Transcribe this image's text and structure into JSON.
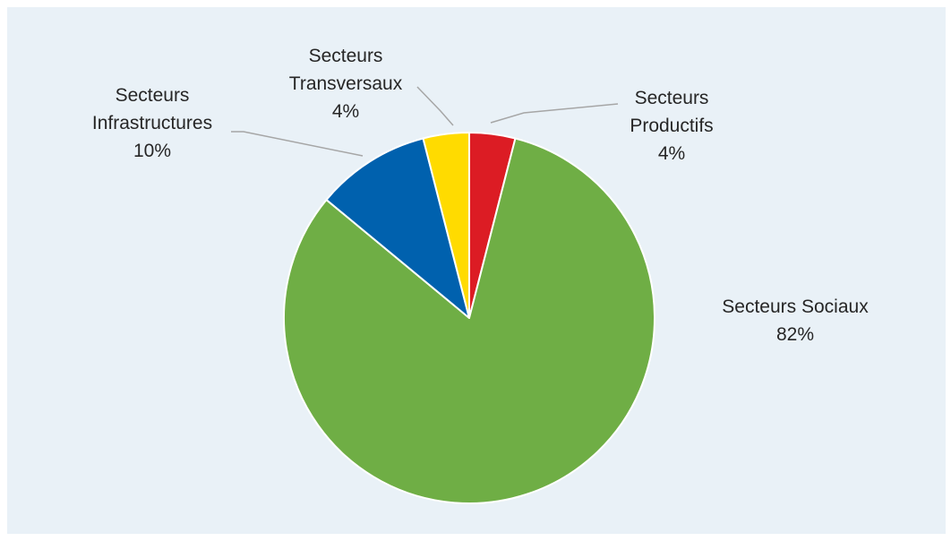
{
  "chart_data": {
    "type": "pie",
    "title": "",
    "start_angle_deg": 0,
    "direction": "clockwise",
    "slices": [
      {
        "label_lines": [
          "Secteurs",
          "Productifs"
        ],
        "value": 4,
        "value_label": "4%",
        "color": "#dc1c24"
      },
      {
        "label_lines": [
          "Secteurs Sociaux"
        ],
        "value": 82,
        "value_label": "82%",
        "color": "#6fae45"
      },
      {
        "label_lines": [
          "Secteurs",
          "Infrastructures"
        ],
        "value": 10,
        "value_label": "10%",
        "color": "#0061ae"
      },
      {
        "label_lines": [
          "Secteurs",
          "Transversaux"
        ],
        "value": 4,
        "value_label": "4%",
        "color": "#ffdb00"
      }
    ],
    "leader_line_color": "#a6a6a6",
    "slice_border_color": "#ffffff"
  }
}
